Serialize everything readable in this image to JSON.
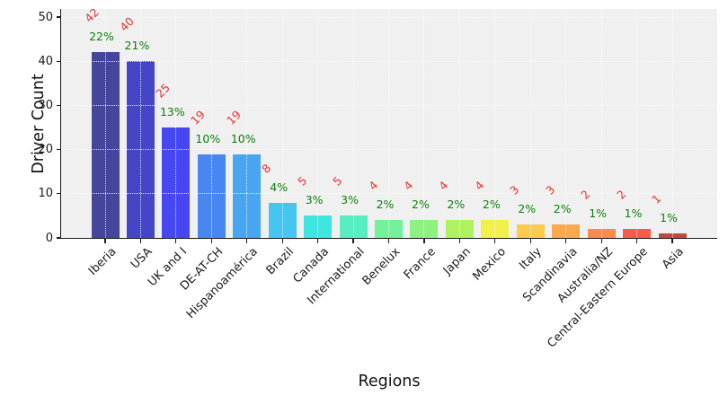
{
  "chart_data": {
    "type": "bar",
    "title": "",
    "xlabel": "Regions",
    "ylabel": "Driver Count",
    "categories": [
      "Iberia",
      "USA",
      "UK and I",
      "DE-AT-CH",
      "Hispanoamérica",
      "Brazil",
      "Canada",
      "International",
      "Benelux",
      "France",
      "Japan",
      "Mexico",
      "Italy",
      "Scandinavia",
      "Australia/NZ",
      "Central-Eastern Europe",
      "Asia"
    ],
    "values": [
      42,
      40,
      25,
      19,
      19,
      8,
      5,
      5,
      4,
      4,
      4,
      4,
      3,
      3,
      2,
      2,
      1
    ],
    "percent_labels": [
      "22%",
      "21%",
      "13%",
      "10%",
      "10%",
      "4%",
      "3%",
      "3%",
      "2%",
      "2%",
      "2%",
      "2%",
      "2%",
      "2%",
      "1%",
      "1%",
      "1%"
    ],
    "bar_colors": [
      "#45459B",
      "#4545C8",
      "#4747F2",
      "#4886F2",
      "#48A5F2",
      "#46C5F1",
      "#3FE6E0",
      "#57EEC2",
      "#73F19B",
      "#8EF282",
      "#AFF161",
      "#F2F04B",
      "#FACC4A",
      "#FAA94E",
      "#F88B50",
      "#FA5A4B",
      "#C24743"
    ],
    "yticks": [
      0,
      10,
      20,
      30,
      40,
      50
    ],
    "ylim": [
      0,
      51.8
    ],
    "grid": "dotted, drawn above bars",
    "legend": "none",
    "plot_bg": "#f0f0f0",
    "figure_bg": "#ffffff",
    "count_label_color": "#e93434",
    "percent_label_color": "#0e7e0e",
    "axis_color": "#1a1a1a"
  }
}
